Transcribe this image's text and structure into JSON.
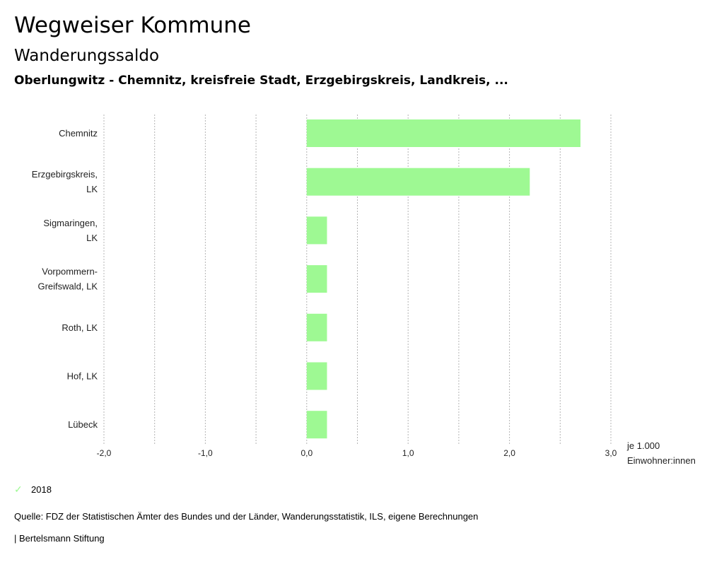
{
  "header": {
    "title": "Wegweiser Kommune",
    "subtitle": "Wanderungssaldo",
    "context": "Oberlungwitz - Chemnitz, kreisfreie Stadt, Erzgebirgskreis, Landkreis, ..."
  },
  "chart_data": {
    "type": "bar",
    "orientation": "horizontal",
    "title": "Wanderungssaldo",
    "categories": [
      [
        "Chemnitz"
      ],
      [
        "Erzgebirgskreis,",
        "LK"
      ],
      [
        "Sigmaringen,",
        "LK"
      ],
      [
        "Vorpommern-",
        "Greifswald, LK"
      ],
      [
        "Roth, LK"
      ],
      [
        "Hof, LK"
      ],
      [
        "Lübeck"
      ]
    ],
    "series": [
      {
        "name": "2018",
        "color": "#9ef993",
        "values": [
          2.7,
          2.2,
          0.2,
          0.2,
          0.2,
          0.2,
          0.2
        ]
      }
    ],
    "xlim": [
      -2.0,
      3.0
    ],
    "x_ticks": [
      -2.0,
      -1.0,
      0.0,
      1.0,
      2.0,
      3.0
    ],
    "x_tick_labels": [
      "-2,0",
      "-1,0",
      "0,0",
      "1,0",
      "2,0",
      "3,0"
    ],
    "gridlines": [
      -2.0,
      -1.5,
      -1.0,
      -0.5,
      0.0,
      0.5,
      1.0,
      1.5,
      2.0,
      2.5,
      3.0
    ],
    "xlabel": [
      "je 1.000",
      "Einwohner:innen"
    ],
    "grid": true,
    "legend_position": "bottom-left"
  },
  "legend": {
    "label": "2018",
    "icon": "check-icon",
    "color": "#9ef993"
  },
  "footer": {
    "source": "Quelle: FDZ der Statistischen Ämter des Bundes und der Länder, Wanderungsstatistik, ILS, eigene Berechnungen",
    "brand": "| Bertelsmann Stiftung"
  }
}
